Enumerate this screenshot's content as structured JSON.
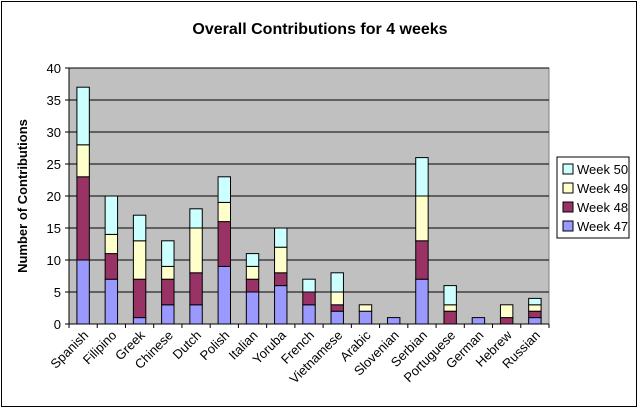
{
  "chart_data": {
    "type": "bar",
    "stacked": true,
    "title": "Overall Contributions for 4 weeks",
    "xlabel": "",
    "ylabel": "Number of Contributions",
    "ylim": [
      0,
      40
    ],
    "yticks": [
      0,
      5,
      10,
      15,
      20,
      25,
      30,
      35,
      40
    ],
    "grid": true,
    "legend_position": "right",
    "plot_background": "#c0c0c0",
    "categories": [
      "Spanish",
      "Filipino",
      "Greek",
      "Chinese",
      "Dutch",
      "Polish",
      "Italian",
      "Yoruba",
      "French",
      "Vietnamese",
      "Arabic",
      "Slovenian",
      "Serbian",
      "Portuguese",
      "German",
      "Hebrew",
      "Russian"
    ],
    "series": [
      {
        "name": "Week 47",
        "color": "#9999ff",
        "values": [
          10,
          7,
          1,
          3,
          3,
          9,
          5,
          6,
          3,
          2,
          2,
          1,
          7,
          0,
          1,
          0,
          1
        ]
      },
      {
        "name": "Week 48",
        "color": "#993366",
        "values": [
          13,
          4,
          6,
          4,
          5,
          7,
          2,
          2,
          2,
          1,
          0,
          0,
          6,
          2,
          0,
          1,
          1
        ]
      },
      {
        "name": "Week 49",
        "color": "#ffffcc",
        "values": [
          5,
          3,
          6,
          2,
          7,
          3,
          2,
          4,
          0,
          2,
          1,
          0,
          7,
          1,
          0,
          2,
          1
        ]
      },
      {
        "name": "Week 50",
        "color": "#ccffff",
        "values": [
          9,
          6,
          4,
          4,
          3,
          4,
          2,
          3,
          2,
          3,
          0,
          0,
          6,
          3,
          0,
          0,
          1
        ]
      }
    ]
  }
}
